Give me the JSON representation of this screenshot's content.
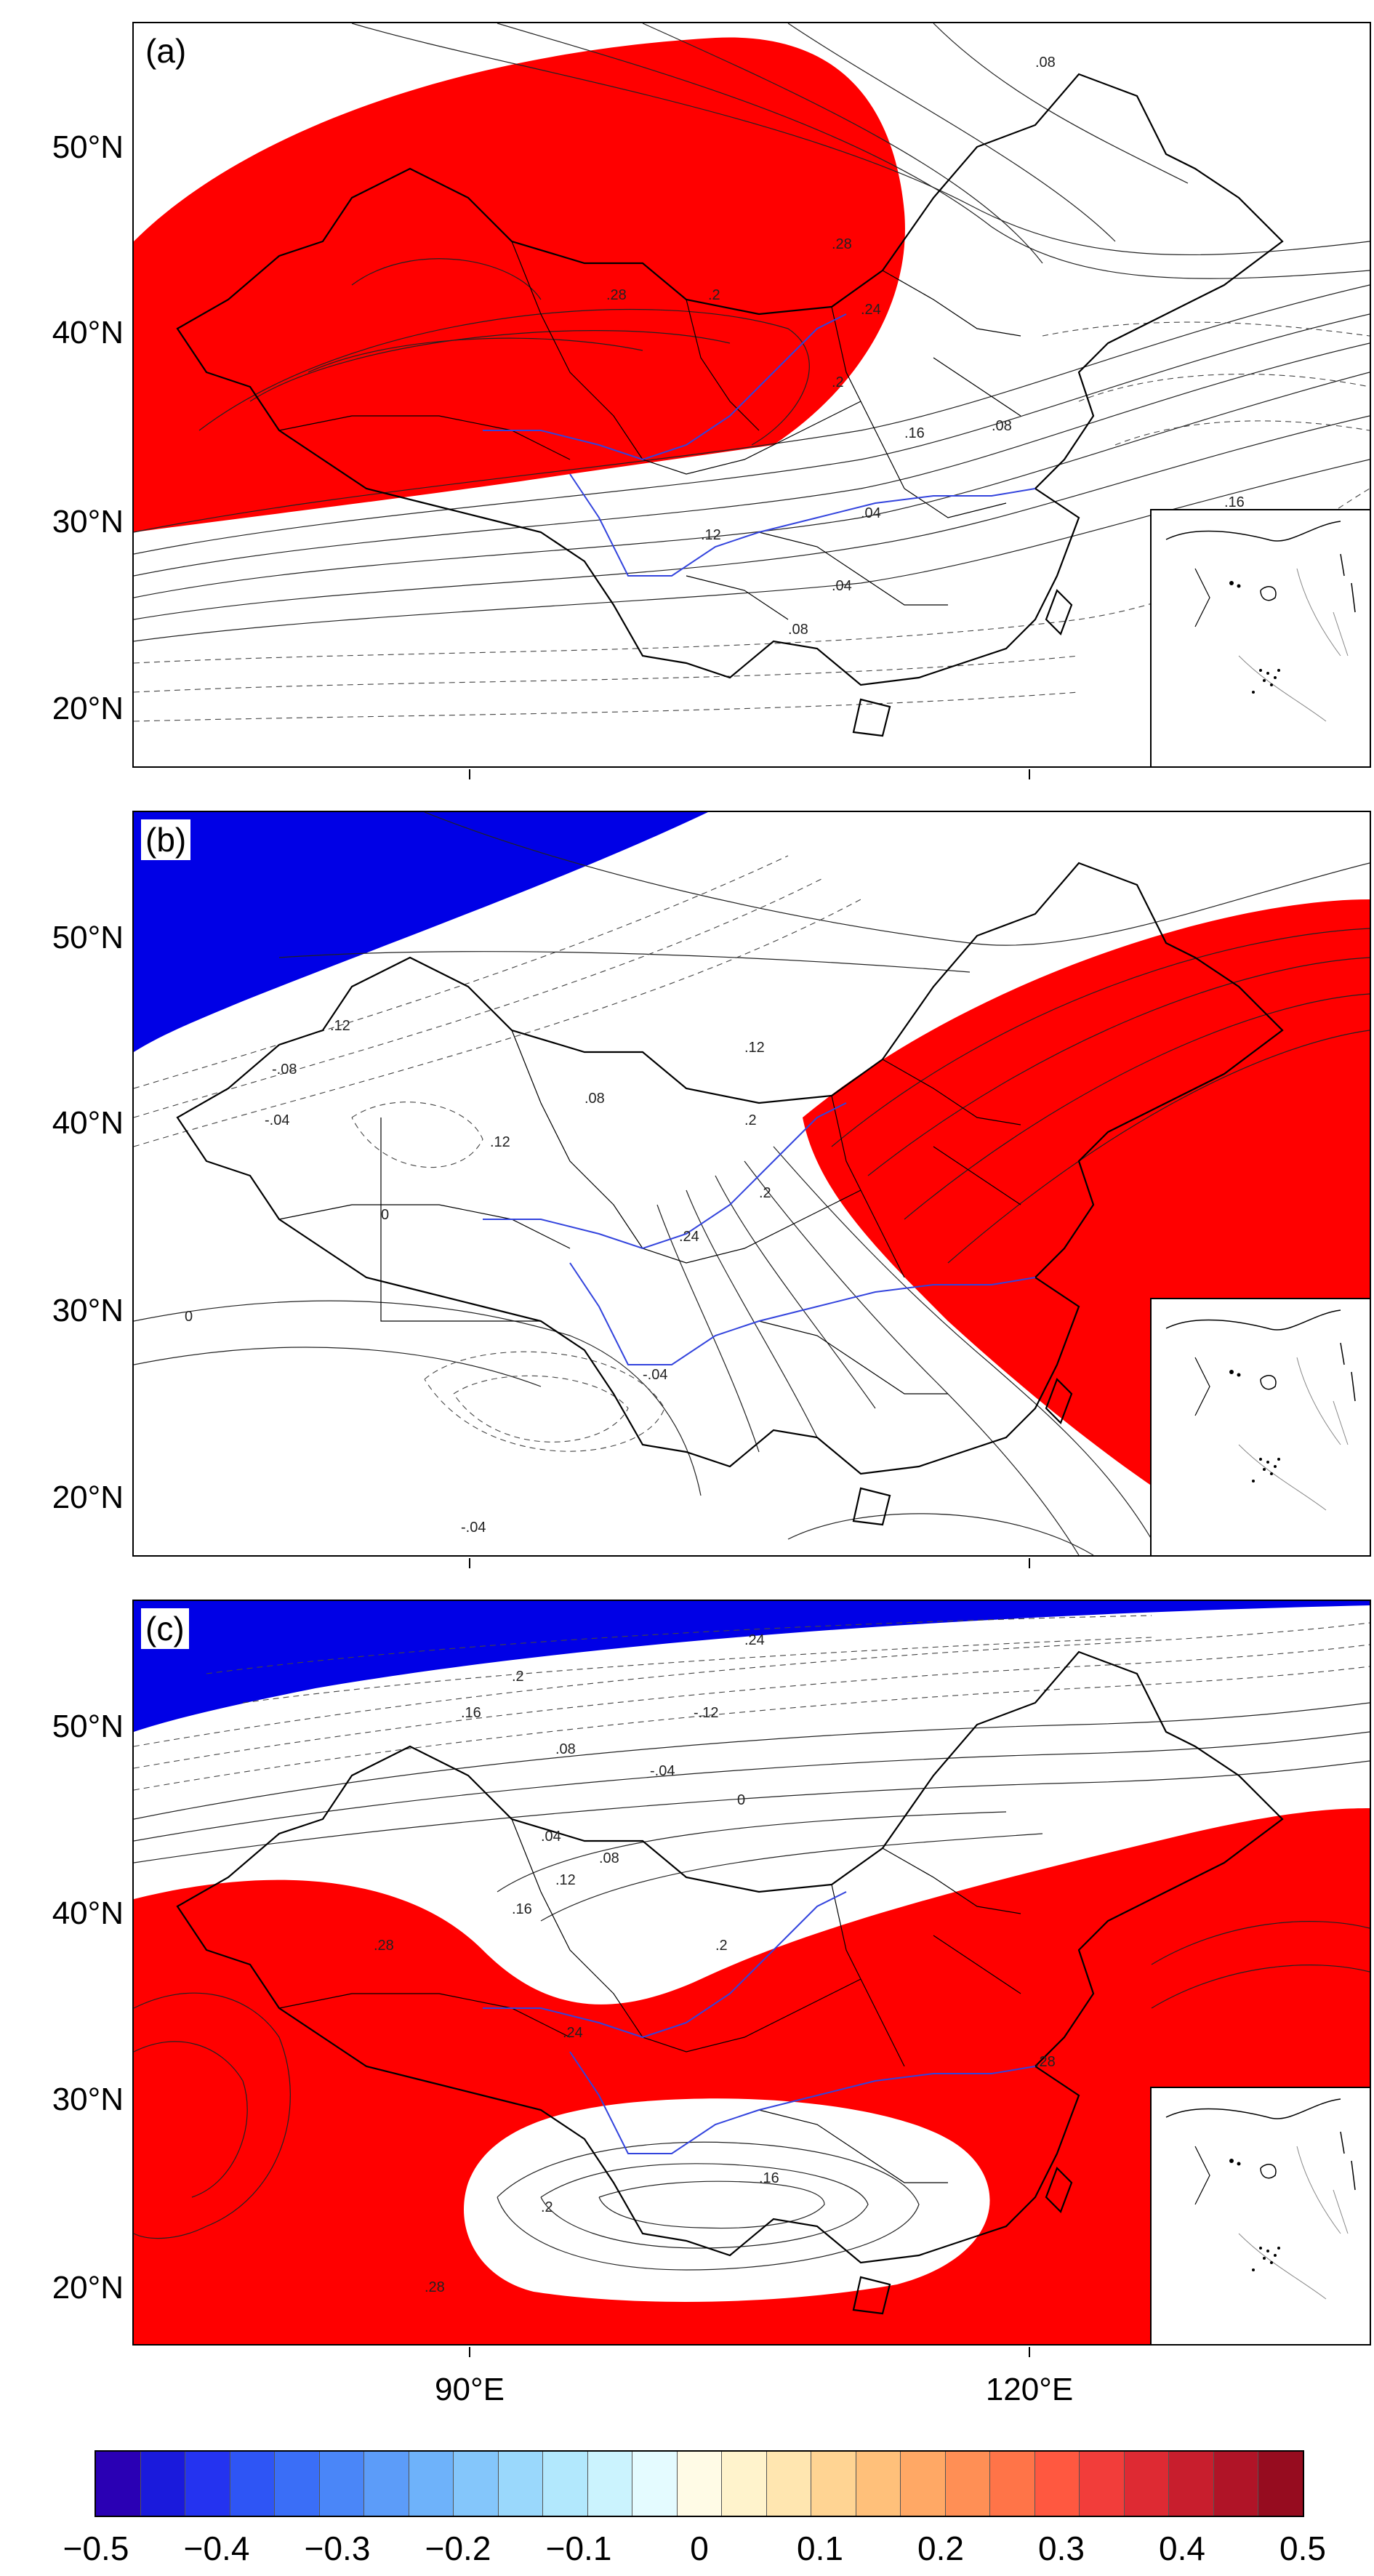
{
  "panels": [
    {
      "label": "(a)",
      "contour_labels": [
        ".08",
        ".28",
        ".28",
        ".24",
        ".2",
        ".2",
        ".16",
        ".12",
        ".04",
        ".04",
        ".08",
        ".16",
        ".08"
      ]
    },
    {
      "label": "(b)",
      "contour_labels": [
        ".12",
        "-.08",
        "-.04",
        ".12",
        ".08",
        ".12",
        ".2",
        ".24",
        "0",
        "0",
        "-.04",
        "-.04",
        ".2"
      ]
    },
    {
      "label": "(c)",
      "contour_labels": [
        ".24",
        ".2",
        ".16",
        "-.12",
        ".08",
        "-.04",
        "0",
        ".04",
        ".08",
        ".12",
        ".16",
        ".2",
        ".28",
        ".24",
        ".28",
        ".16",
        ".2",
        ".28"
      ]
    }
  ],
  "lat_labels": [
    "50°N",
    "40°N",
    "30°N",
    "20°N"
  ],
  "lon_labels": [
    "90°E",
    "120°E"
  ],
  "colorbar": {
    "tick_labels": [
      "−0.5",
      "−0.4",
      "−0.3",
      "−0.2",
      "−0.1",
      "0",
      "0.1",
      "0.2",
      "0.3",
      "0.4",
      "0.5"
    ],
    "range": [
      -0.5,
      0.5
    ],
    "colors": [
      "#2a00b4",
      "#1a1adc",
      "#2433f0",
      "#2e55f5",
      "#3a6ef7",
      "#4a86f8",
      "#5c9cf9",
      "#6eb2fa",
      "#84c6fb",
      "#9ad8fc",
      "#b2e8fd",
      "#cbf3fe",
      "#e4fbff",
      "#fffbe6",
      "#fff3cc",
      "#ffe6b0",
      "#ffd493",
      "#ffc07a",
      "#ffa865",
      "#ff8f55",
      "#ff7448",
      "#ff5840",
      "#f23d3a",
      "#de2a33",
      "#c81e2d",
      "#b01427",
      "#960c1f"
    ]
  },
  "colors": {
    "positive_fill": "#ff0000",
    "negative_fill": "#0000e6",
    "river": "#3344dd"
  }
}
